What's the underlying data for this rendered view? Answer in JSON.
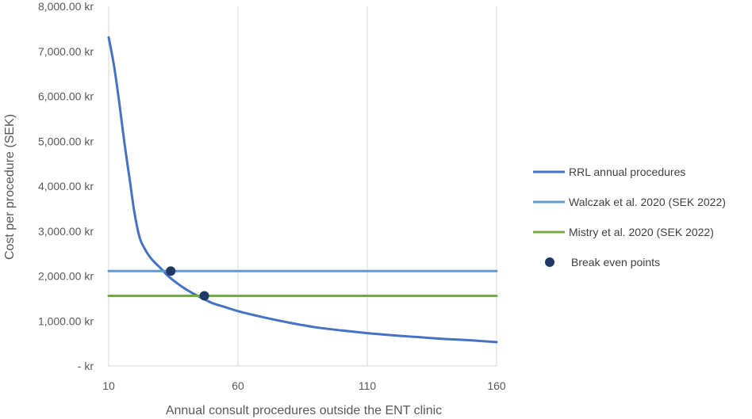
{
  "chart_data": {
    "type": "line",
    "title": "",
    "xlabel": "Annual consult procedures outside the ENT clinic",
    "ylabel": "Cost per procedure (SEK)",
    "xlim": [
      10,
      160
    ],
    "ylim": [
      0,
      8000
    ],
    "x_ticks": [
      10,
      60,
      110,
      160
    ],
    "y_ticks": [
      0,
      1000,
      2000,
      3000,
      4000,
      5000,
      6000,
      7000,
      8000
    ],
    "y_tick_labels": [
      " -   kr",
      "1,000.00 kr",
      "2,000.00 kr",
      "3,000.00 kr",
      "4,000.00 kr",
      "5,000.00 kr",
      "6,000.00 kr",
      "7,000.00 kr",
      "8,000.00 kr"
    ],
    "grid": "vertical",
    "legend_position": "right",
    "series": [
      {
        "name": "RRL annual procedures",
        "kind": "line",
        "color": "#4472c4",
        "x": [
          10,
          12,
          14,
          16,
          18,
          20,
          22,
          24,
          26,
          28,
          30,
          33,
          36,
          40,
          45,
          50,
          55,
          60,
          70,
          80,
          90,
          100,
          110,
          120,
          130,
          140,
          150,
          160
        ],
        "y": [
          7310,
          6700,
          5900,
          5000,
          4200,
          3400,
          2850,
          2600,
          2420,
          2290,
          2180,
          2000,
          1860,
          1700,
          1540,
          1400,
          1310,
          1220,
          1080,
          960,
          860,
          790,
          730,
          680,
          640,
          600,
          570,
          530
        ]
      },
      {
        "name": "Walczak et al. 2020 (SEK 2022)",
        "kind": "hline",
        "color": "#5b9bd5",
        "x": [
          10,
          160
        ],
        "y": [
          2110,
          2110
        ]
      },
      {
        "name": "Mistry et al. 2020 (SEK 2022)",
        "kind": "hline",
        "color": "#70ad47",
        "x": [
          10,
          160
        ],
        "y": [
          1560,
          1560
        ]
      },
      {
        "name": "Break even points",
        "kind": "scatter",
        "color": "#1f3864",
        "x": [
          34,
          47
        ],
        "y": [
          2110,
          1560
        ]
      }
    ]
  }
}
